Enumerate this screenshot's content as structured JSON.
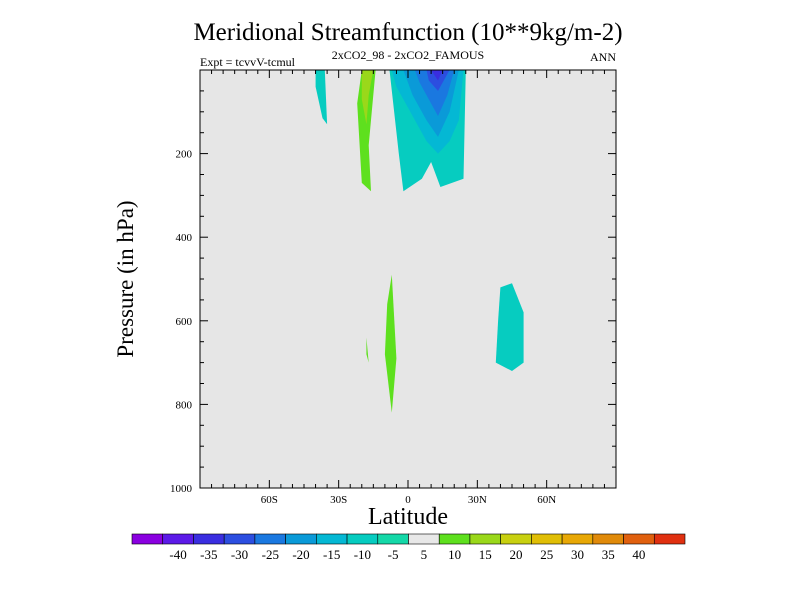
{
  "chart_data": {
    "type": "contour",
    "title": "Meridional Streamfunction (10**9kg/m-2)",
    "subtitle_left": "Expt = tcvvV-tcmul",
    "subtitle_center": "2xCO2_98 - 2xCO2_FAMOUS",
    "subtitle_right": "ANN",
    "xlabel": "Latitude",
    "ylabel": "Pressure (in hPa)",
    "xlim": [
      -90,
      90
    ],
    "ylim": [
      0,
      1000
    ],
    "y_inverted": true,
    "x_ticks": [
      {
        "value": -60,
        "label": "60S"
      },
      {
        "value": -30,
        "label": "30S"
      },
      {
        "value": 0,
        "label": "0"
      },
      {
        "value": 30,
        "label": "30N"
      },
      {
        "value": 60,
        "label": "60N"
      }
    ],
    "y_ticks": [
      {
        "value": 200,
        "label": "200"
      },
      {
        "value": 400,
        "label": "400"
      },
      {
        "value": 600,
        "label": "600"
      },
      {
        "value": 800,
        "label": "800"
      },
      {
        "value": 1000,
        "label": "1000"
      }
    ],
    "background_color": "#e6e6e6",
    "colorbar": {
      "levels": [
        "-40",
        "-35",
        "-30",
        "-25",
        "-20",
        "-15",
        "-10",
        "-5",
        "5",
        "10",
        "15",
        "20",
        "25",
        "30",
        "35",
        "40"
      ],
      "colors": [
        "#8a00e0",
        "#5c1ae8",
        "#3a2ee0",
        "#2c4ee0",
        "#1a78e0",
        "#0a9ad8",
        "#04b8d4",
        "#06ccc0",
        "#14d8a8",
        "#e8e8e8",
        "#5ee01e",
        "#9ad81a",
        "#c8d010",
        "#e0be06",
        "#e8a806",
        "#e08a0a",
        "#e0600e",
        "#e03010"
      ]
    },
    "regions": [
      {
        "level": 10,
        "color": "#5ee01e",
        "points": [
          [
            -20,
            0
          ],
          [
            -14,
            0
          ],
          [
            -17,
            180
          ],
          [
            -16,
            290
          ],
          [
            -20,
            270
          ],
          [
            -22,
            80
          ]
        ]
      },
      {
        "level": 15,
        "color": "#9ad81a",
        "points": [
          [
            -20,
            0
          ],
          [
            -15,
            0
          ],
          [
            -17,
            60
          ],
          [
            -18,
            130
          ],
          [
            -20,
            70
          ]
        ]
      },
      {
        "level": -5,
        "color": "#06ccc0",
        "points": [
          [
            -40,
            0
          ],
          [
            -36,
            0
          ],
          [
            -35,
            130
          ],
          [
            -37,
            115
          ],
          [
            -40,
            40
          ]
        ]
      },
      {
        "level": -5,
        "color": "#06ccc0",
        "points": [
          [
            -8,
            0
          ],
          [
            25,
            0
          ],
          [
            24,
            260
          ],
          [
            14,
            280
          ],
          [
            10,
            220
          ],
          [
            6,
            260
          ],
          [
            -2,
            290
          ],
          [
            -4,
            200
          ]
        ]
      },
      {
        "level": -10,
        "color": "#04b8d4",
        "points": [
          [
            -7,
            0
          ],
          [
            24,
            0
          ],
          [
            22,
            120
          ],
          [
            18,
            170
          ],
          [
            13,
            200
          ],
          [
            8,
            170
          ],
          [
            0,
            90
          ],
          [
            -5,
            40
          ]
        ]
      },
      {
        "level": -15,
        "color": "#0a9ad8",
        "points": [
          [
            -2,
            0
          ],
          [
            22,
            0
          ],
          [
            18,
            100
          ],
          [
            13,
            160
          ],
          [
            8,
            120
          ],
          [
            2,
            60
          ]
        ]
      },
      {
        "level": -20,
        "color": "#1a78e0",
        "points": [
          [
            3,
            0
          ],
          [
            20,
            0
          ],
          [
            17,
            60
          ],
          [
            13,
            110
          ],
          [
            9,
            70
          ],
          [
            5,
            30
          ]
        ]
      },
      {
        "level": -25,
        "color": "#2c4ee0",
        "points": [
          [
            8,
            0
          ],
          [
            18,
            0
          ],
          [
            13,
            50
          ],
          [
            9,
            25
          ]
        ]
      },
      {
        "level": -30,
        "color": "#3a2ee0",
        "points": [
          [
            10,
            0
          ],
          [
            15,
            0
          ],
          [
            13,
            25
          ]
        ]
      },
      {
        "level": 10,
        "color": "#5ee01e",
        "points": [
          [
            -7,
            490
          ],
          [
            -5,
            690
          ],
          [
            -7,
            820
          ],
          [
            -10,
            680
          ],
          [
            -9,
            560
          ]
        ]
      },
      {
        "level": 10,
        "color": "#5ee01e",
        "points": [
          [
            -18,
            640
          ],
          [
            -17,
            700
          ],
          [
            -18,
            680
          ]
        ]
      },
      {
        "level": -5,
        "color": "#06ccc0",
        "points": [
          [
            40,
            520
          ],
          [
            45,
            510
          ],
          [
            50,
            580
          ],
          [
            50,
            700
          ],
          [
            45,
            720
          ],
          [
            38,
            700
          ],
          [
            39,
            600
          ]
        ]
      }
    ]
  }
}
